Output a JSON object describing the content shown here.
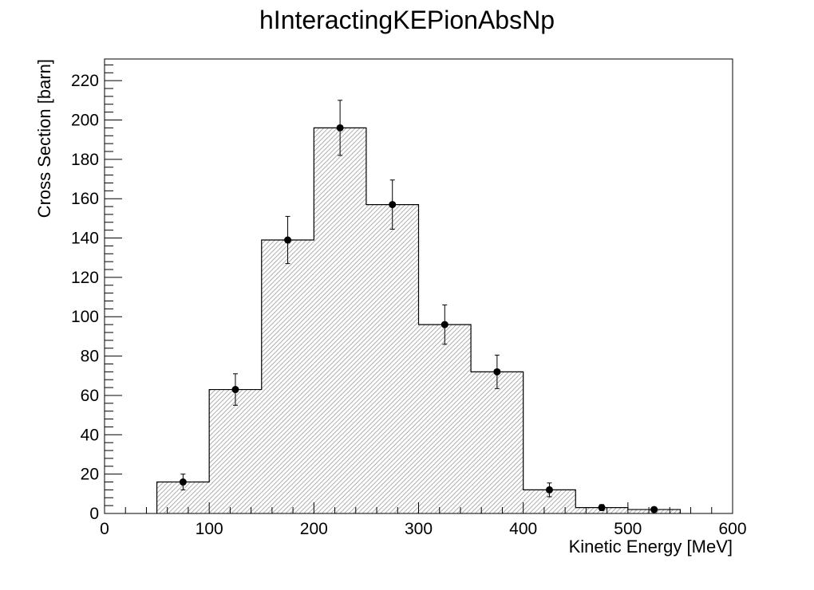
{
  "chart_data": {
    "type": "bar",
    "title": "hInteractingKEPionAbsNp",
    "xlabel": "Kinetic Energy [MeV]",
    "ylabel": "Cross Section [barn]",
    "xlim": [
      0,
      600
    ],
    "ylim": [
      0,
      231
    ],
    "x_ticks": [
      "0",
      "100",
      "200",
      "300",
      "400",
      "500",
      "600"
    ],
    "y_ticks": [
      "0",
      "20",
      "40",
      "60",
      "80",
      "100",
      "120",
      "140",
      "160",
      "180",
      "200",
      "220"
    ],
    "bin_edges": [
      50,
      100,
      150,
      200,
      250,
      300,
      350,
      400,
      450,
      500,
      550
    ],
    "values": [
      16,
      63,
      139,
      196,
      157,
      96,
      72,
      12,
      3,
      2
    ],
    "errors": [
      4,
      8,
      12,
      14,
      12.5,
      10,
      8.5,
      3.5,
      1.5,
      1
    ],
    "grid": false,
    "fill_color": "#d0d0d0",
    "line_color": "#000000"
  }
}
